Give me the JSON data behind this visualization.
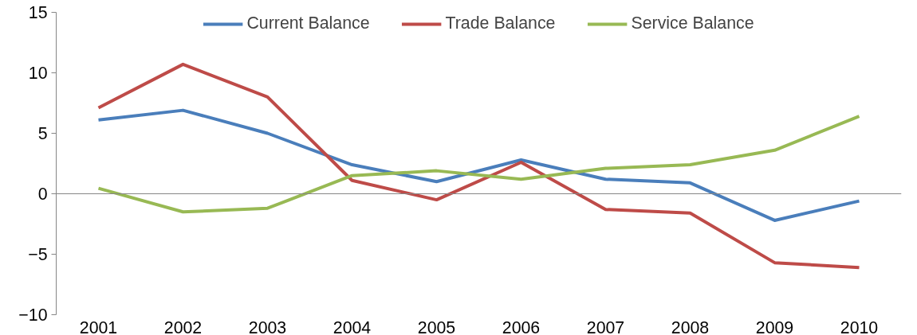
{
  "chart_data": {
    "type": "line",
    "categories": [
      "2001",
      "2002",
      "2003",
      "2004",
      "2005",
      "2006",
      "2007",
      "2008",
      "2009",
      "2010"
    ],
    "series": [
      {
        "name": "Current Balance",
        "color": "#4a7ebb",
        "values": [
          6.1,
          6.9,
          5.0,
          2.4,
          1.0,
          2.8,
          1.2,
          0.9,
          -2.2,
          -0.6
        ]
      },
      {
        "name": "Trade Balance",
        "color": "#be4b48",
        "values": [
          7.1,
          10.7,
          8.0,
          1.1,
          -0.5,
          2.6,
          -1.3,
          -1.6,
          -5.7,
          -6.1
        ]
      },
      {
        "name": "Service Balance",
        "color": "#98b954",
        "values": [
          0.45,
          -1.5,
          -1.2,
          1.5,
          1.9,
          1.2,
          2.1,
          2.4,
          3.6,
          6.4
        ]
      }
    ],
    "ylim": [
      -10,
      15
    ],
    "yticks": [
      -10,
      -5,
      0,
      5,
      10,
      15
    ],
    "ref_lines": [
      {
        "axis": "y",
        "value": 0,
        "color": "#868686"
      }
    ],
    "grid": false,
    "legend": "top",
    "marker": "none",
    "line_style": "solid"
  }
}
